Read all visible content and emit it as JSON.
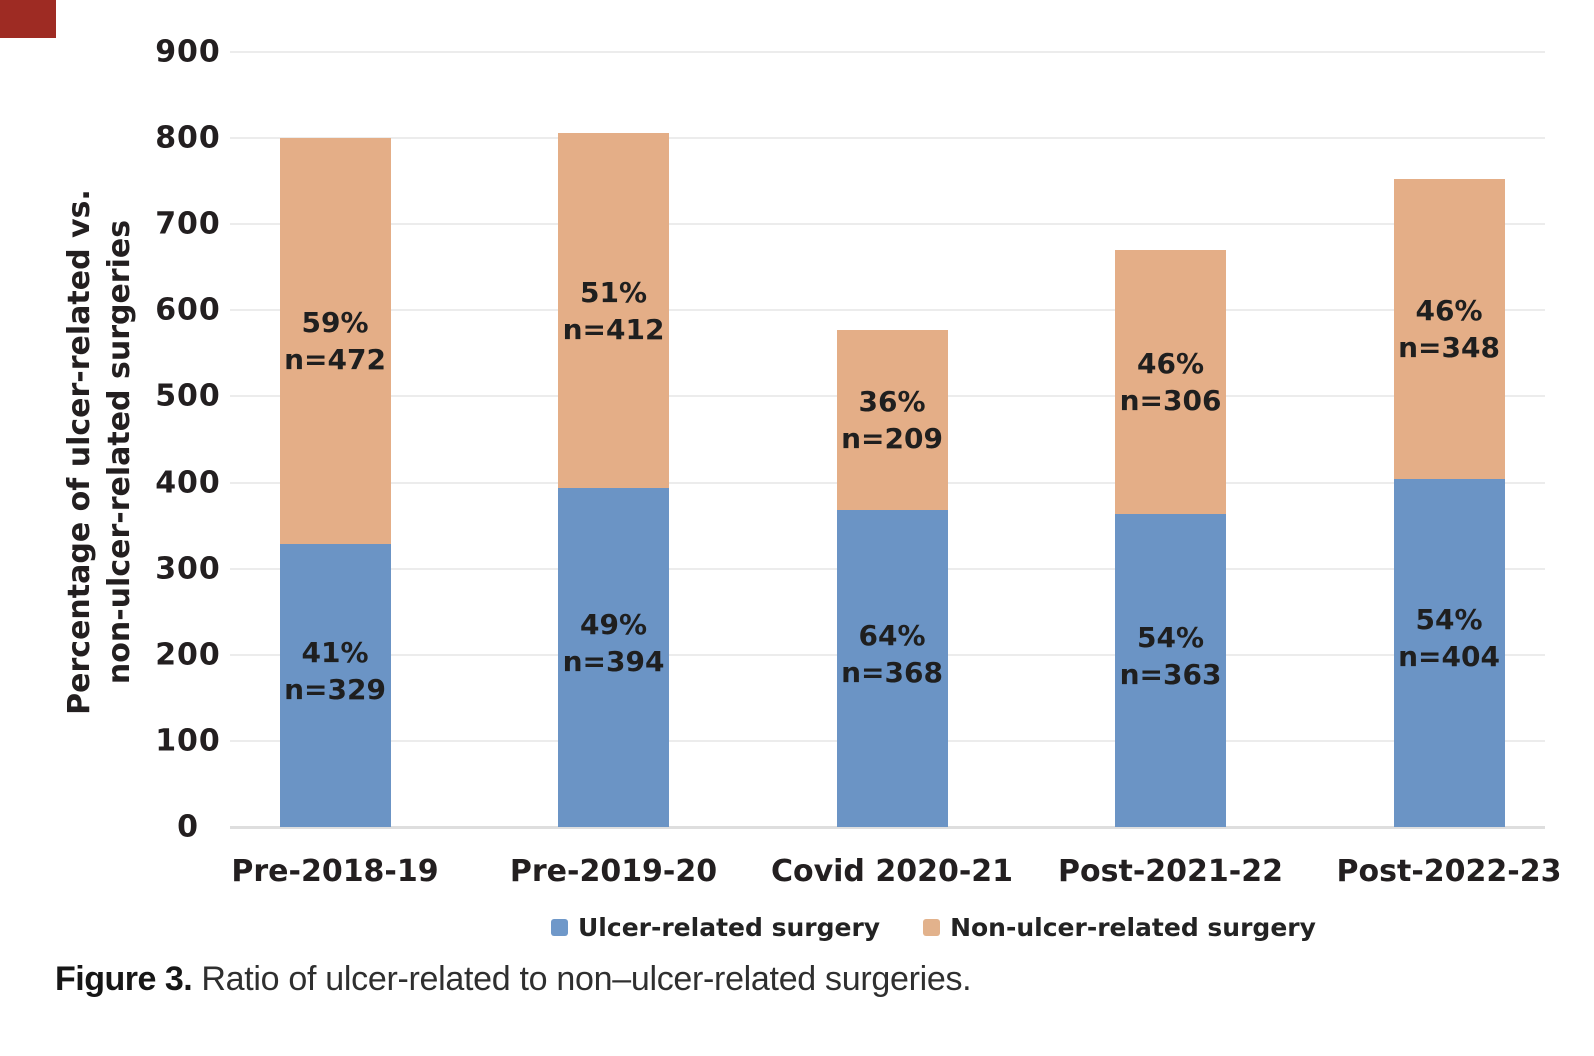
{
  "corner_mark": {
    "color": "#9e2b23"
  },
  "chart_data": {
    "type": "bar",
    "stacked": true,
    "categories": [
      "Pre-2018-19",
      "Pre-2019-20",
      "Covid 2020-21",
      "Post-2021-22",
      "Post-2022-23"
    ],
    "series": [
      {
        "name": "Ulcer-related surgery",
        "color": "#6b94c5",
        "values": [
          329,
          394,
          368,
          363,
          404
        ],
        "pct_labels": [
          "41%",
          "49%",
          "64%",
          "54%",
          "54%"
        ],
        "n_labels": [
          "n=329",
          "n=394",
          "n=368",
          "n=363",
          "n=404"
        ]
      },
      {
        "name": "Non-ulcer-related surgery",
        "color": "#e4ae87",
        "values": [
          472,
          412,
          209,
          306,
          348
        ],
        "pct_labels": [
          "59%",
          "51%",
          "36%",
          "46%",
          "46%"
        ],
        "n_labels": [
          "n=472",
          "n=412",
          "n=209",
          "n=306",
          "n=348"
        ]
      }
    ],
    "totals": [
      801,
      806,
      577,
      669,
      752
    ],
    "title": "",
    "xlabel": "",
    "ylabel_line1": "Percentage of ulcer-related vs.",
    "ylabel_line2": "non-ulcer-related surgeries",
    "ylim": [
      0,
      900
    ],
    "ytick_step": 100,
    "yticks": [
      "0",
      "100",
      "200",
      "300",
      "400",
      "500",
      "600",
      "700",
      "800",
      "900"
    ],
    "grid": true,
    "legend_position": "bottom"
  },
  "legend": {
    "items": [
      {
        "label": "Ulcer-related surgery",
        "color": "#6f98c9"
      },
      {
        "label": "Non-ulcer-related surgery",
        "color": "#e2b28c"
      }
    ]
  },
  "caption": {
    "label": "Figure 3.",
    "text": " Ratio of ulcer-related to non–ulcer-related surgeries."
  }
}
